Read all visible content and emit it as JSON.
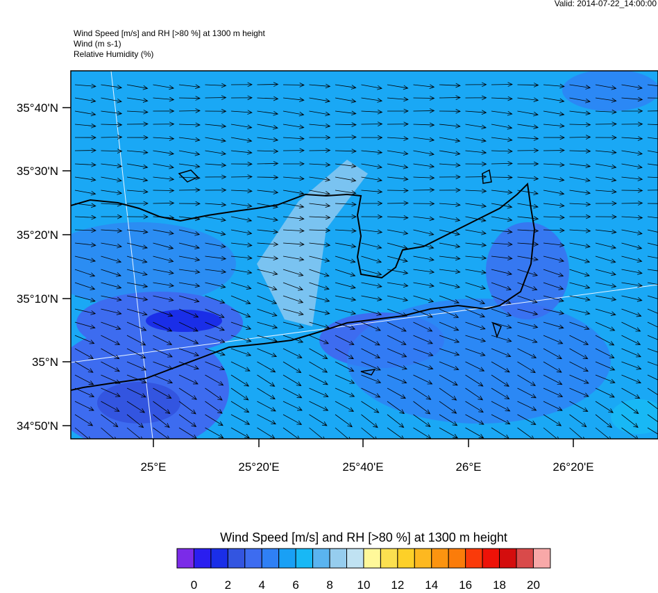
{
  "valid": "Valid: 2014-07-22_14:00:00",
  "header": [
    "Wind Speed [m/s] and RH [>80 %] at 1300 m height",
    "Wind   (m s-1)",
    "Relative Humidity   (%)"
  ],
  "lat_ticks": [
    "35°40'N",
    "35°30'N",
    "35°20'N",
    "35°10'N",
    "35°N",
    "34°50'N"
  ],
  "lon_ticks": [
    "25°E",
    "25°20'E",
    "25°40'E",
    "26°E",
    "26°20'E"
  ],
  "colorbar": {
    "title": "Wind Speed [m/s] and RH [>80 %] at 1300 m height",
    "colors": [
      "#7b2be8",
      "#2a1ef0",
      "#1a2ee8",
      "#3355e0",
      "#3d6cf0",
      "#2f80f5",
      "#19a0f5",
      "#18b8f5",
      "#5ab4f0",
      "#96cdee",
      "#c0e2f2",
      "#fff89a",
      "#fbe050",
      "#fdd028",
      "#fdb820",
      "#fc9410",
      "#fb7c0a",
      "#fa3a0a",
      "#ee1208",
      "#d40d0d",
      "#d94a4a",
      "#f8a8a8"
    ],
    "labels": [
      "0",
      "2",
      "4",
      "6",
      "8",
      "10",
      "12",
      "14",
      "16",
      "18",
      "20"
    ]
  }
}
